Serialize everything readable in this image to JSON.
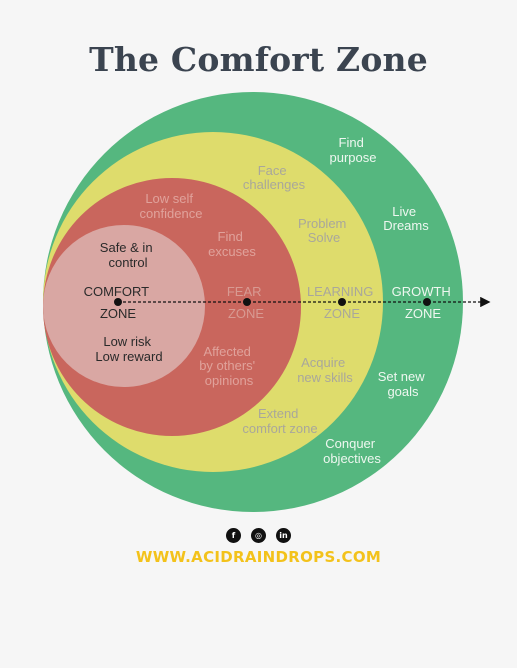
{
  "title": "The Comfort Zone",
  "colors": {
    "growth": "#55b77f",
    "learning": "#dedc6c",
    "fear": "#c9665d",
    "comfort": "#d9a7a3",
    "background": "#f6f6f6",
    "title": "#3b4450",
    "website": "#f3c21b"
  },
  "zones": [
    {
      "id": "comfort",
      "line1": "COMFORT",
      "line2": "ZONE"
    },
    {
      "id": "fear",
      "line1": "FEAR",
      "line2": "ZONE"
    },
    {
      "id": "learning",
      "line1": "LEARNING",
      "line2": "ZONE"
    },
    {
      "id": "growth",
      "line1": "GROWTH",
      "line2": "ZONE"
    }
  ],
  "comfort_items": [
    {
      "line1": "Safe & in",
      "line2": "control"
    },
    {
      "line1": "Low risk",
      "line2": "Low reward"
    }
  ],
  "fear_items": [
    {
      "line1": "Low self",
      "line2": "confidence"
    },
    {
      "line1": "Find",
      "line2": "excuses"
    },
    {
      "line1": "Affected",
      "line2": "by others'",
      "line3": "opinions"
    }
  ],
  "learning_items": [
    {
      "line1": "Face",
      "line2": "challenges"
    },
    {
      "line1": "Problem",
      "line2": "Solve"
    },
    {
      "line1": "Acquire",
      "line2": "new skills"
    },
    {
      "line1": "Extend",
      "line2": "comfort zone"
    }
  ],
  "growth_items": [
    {
      "line1": "Find",
      "line2": "purpose"
    },
    {
      "line1": "Live",
      "line2": "Dreams"
    },
    {
      "line1": "Set new",
      "line2": "goals"
    },
    {
      "line1": "Conquer",
      "line2": "objectives"
    }
  ],
  "social": [
    {
      "icon": "facebook-icon",
      "glyph": "f"
    },
    {
      "icon": "instagram-icon",
      "glyph": "◎"
    },
    {
      "icon": "linkedin-icon",
      "glyph": "in"
    }
  ],
  "website": "WWW.ACIDRAINDROPS.COM"
}
